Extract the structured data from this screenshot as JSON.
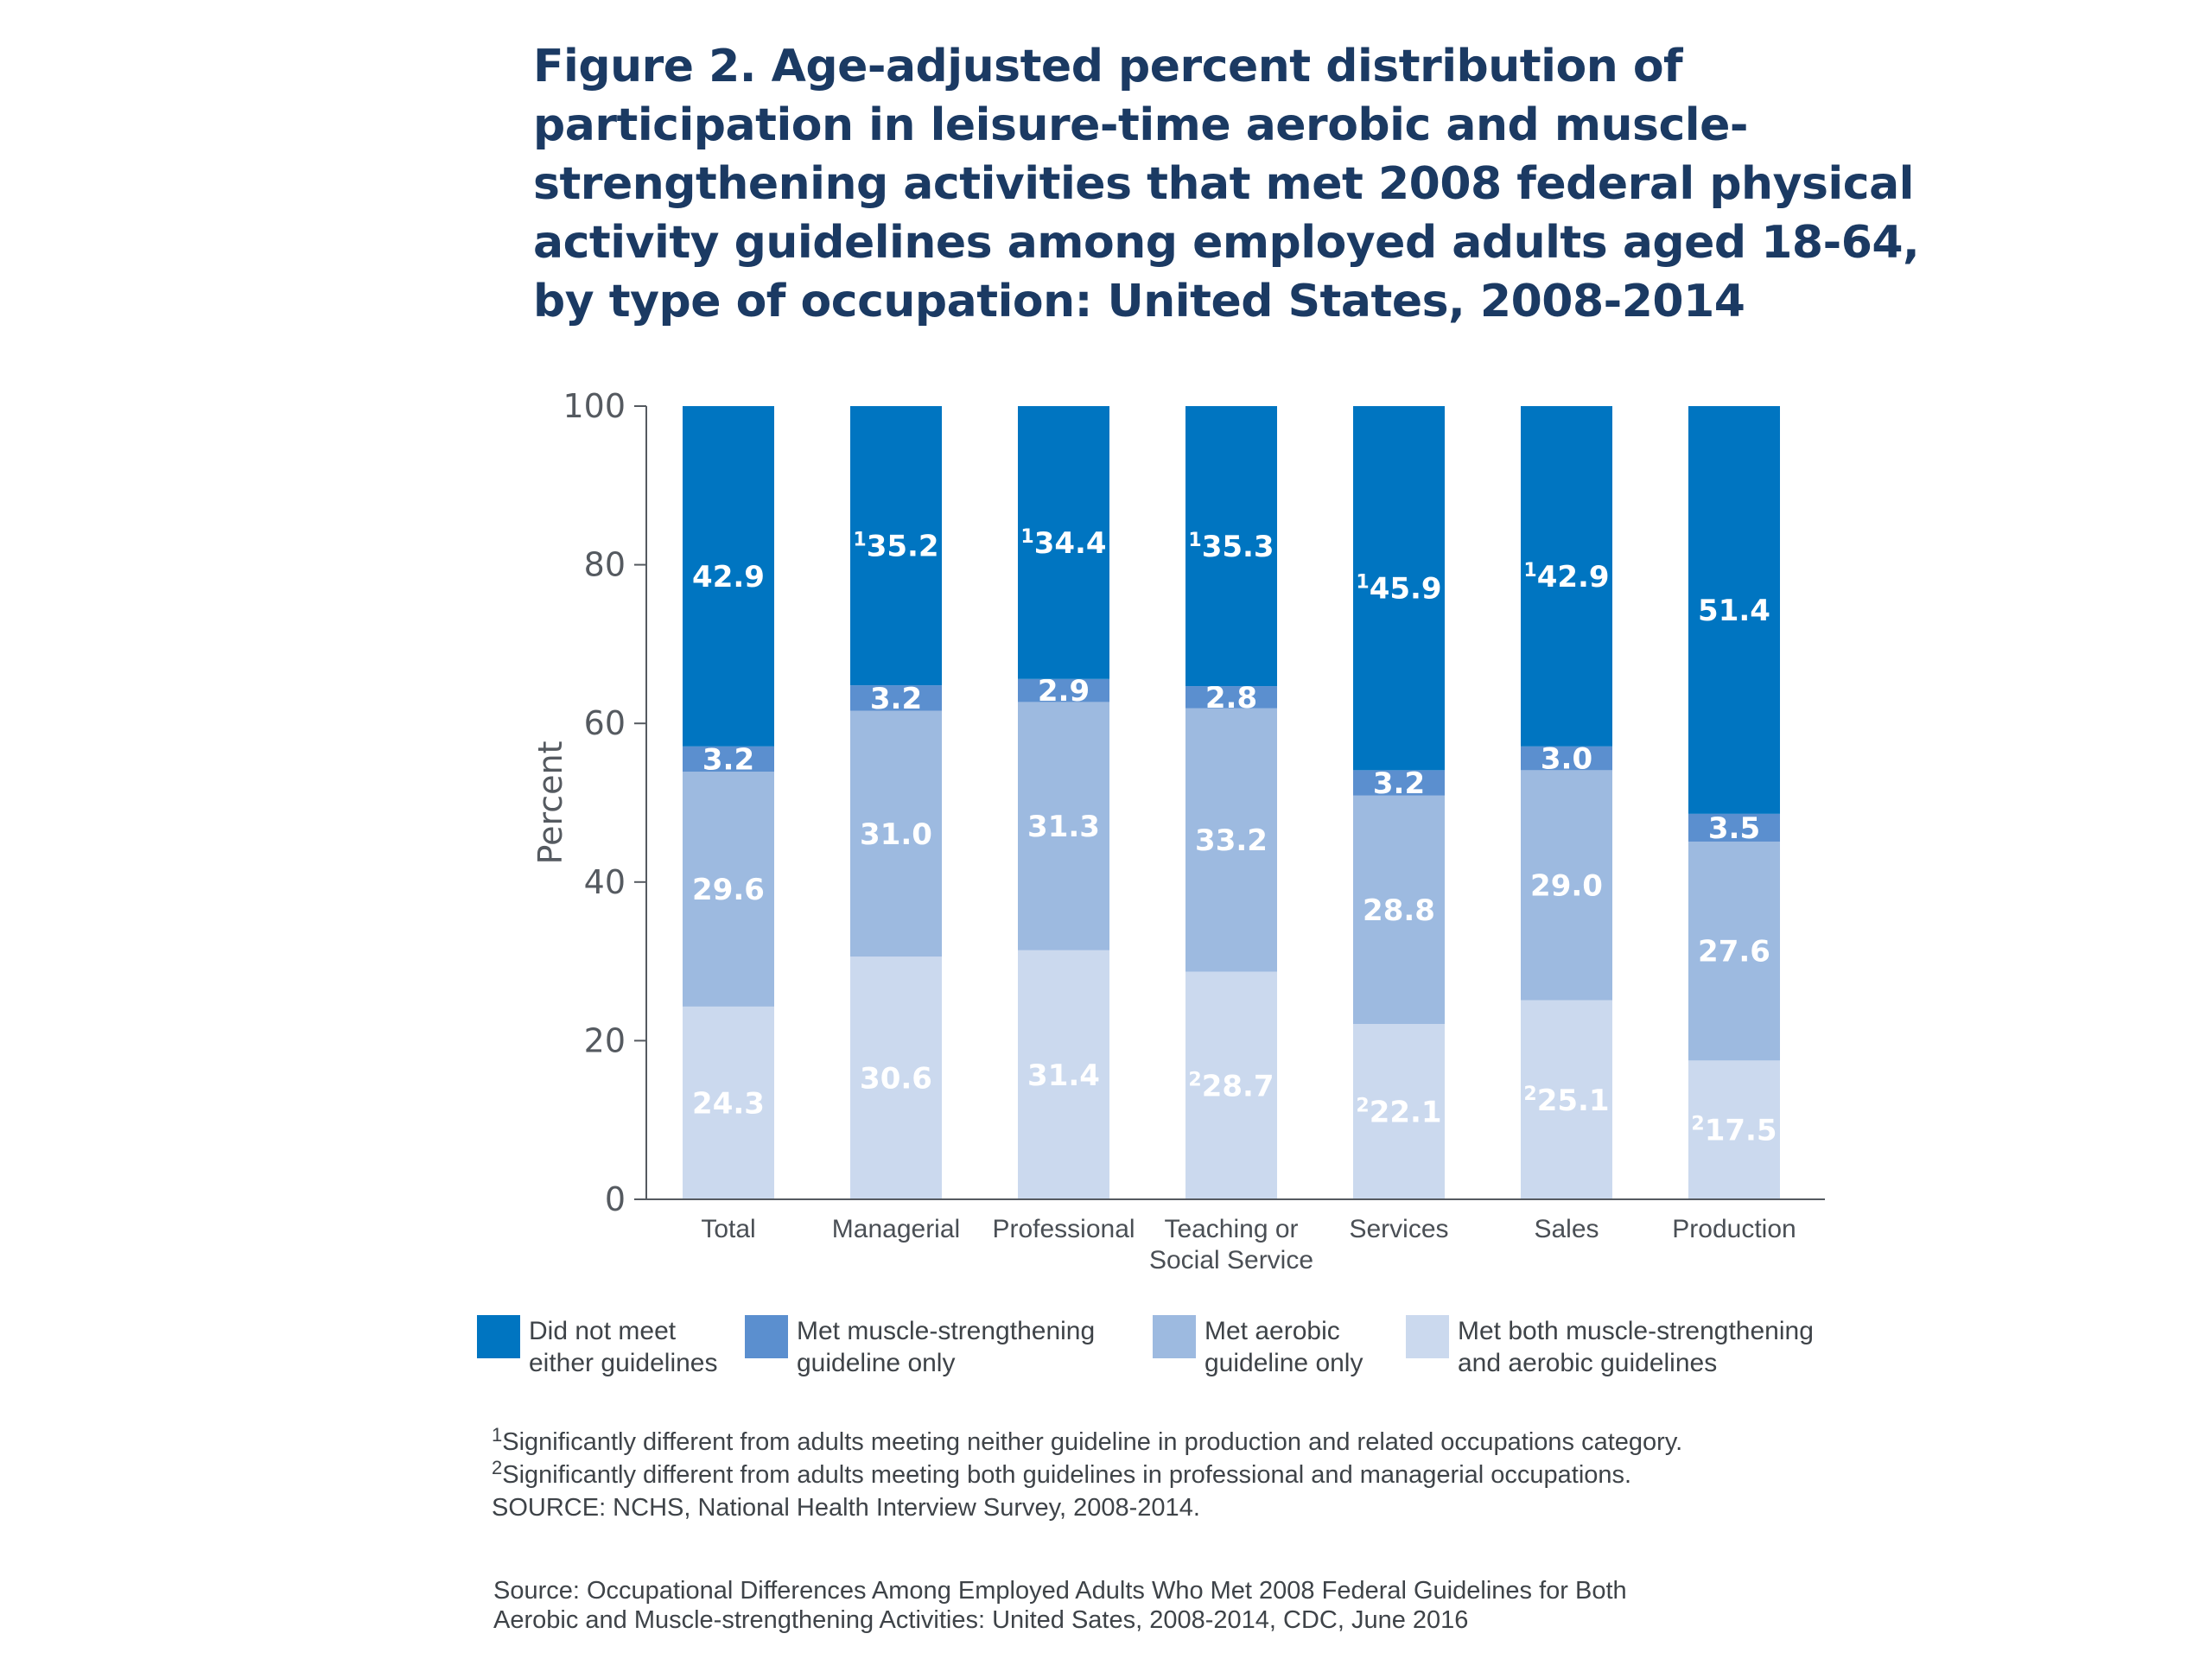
{
  "title_lines": [
    "Figure 2. Age-adjusted percent distribution of",
    "participation in leisure-time aerobic and muscle-",
    "strengthening activities that met 2008 federal physical",
    "activity guidelines among employed adults aged 18-64,",
    "by type of occupation: United States, 2008-2014"
  ],
  "chart_data": {
    "type": "bar",
    "stacked": true,
    "ylabel": "Percent",
    "xlabel": "",
    "ylim": [
      0,
      100
    ],
    "yticks": [
      0,
      20,
      40,
      60,
      80,
      100
    ],
    "categories": [
      "Total",
      "Managerial",
      "Professional",
      "Teaching or\nSocial Service",
      "Services",
      "Sales",
      "Production"
    ],
    "series": [
      {
        "name": "Met both muscle-strengthening and aerobic guidelines",
        "color": "#cbd9ee",
        "label_color": "#ffffff",
        "values": [
          24.3,
          30.6,
          31.4,
          28.7,
          22.1,
          25.1,
          17.5
        ],
        "footnote_marks": [
          "",
          "",
          "",
          "2",
          "2",
          "2",
          "2"
        ]
      },
      {
        "name": "Met aerobic guideline only",
        "color": "#9dbae0",
        "label_color": "#ffffff",
        "values": [
          29.6,
          31.0,
          31.3,
          33.2,
          28.8,
          29.0,
          27.6
        ],
        "footnote_marks": [
          "",
          "",
          "",
          "",
          "",
          "",
          ""
        ]
      },
      {
        "name": "Met muscle-strengthening guideline only",
        "color": "#5b8fcf",
        "label_color": "#ffffff",
        "values": [
          3.2,
          3.2,
          2.9,
          2.8,
          3.2,
          3.0,
          3.5
        ],
        "footnote_marks": [
          "",
          "",
          "",
          "",
          "",
          "",
          ""
        ]
      },
      {
        "name": "Did not meet either guidelines",
        "color": "#0075c1",
        "label_color": "#ffffff",
        "values": [
          42.9,
          35.2,
          34.4,
          35.3,
          45.9,
          42.9,
          51.4
        ],
        "footnote_marks": [
          "",
          "1",
          "1",
          "1",
          "1",
          "1",
          ""
        ]
      }
    ],
    "axis_color": "#555a60"
  },
  "legend": [
    {
      "label": "Did not meet\neither guidelines",
      "color": "#0075c1"
    },
    {
      "label": "Met muscle-strengthening\nguideline only",
      "color": "#5b8fcf"
    },
    {
      "label": "Met aerobic\nguideline only",
      "color": "#9dbae0"
    },
    {
      "label": "Met both muscle-strengthening\nand aerobic guidelines",
      "color": "#cbd9ee"
    }
  ],
  "footnotes": [
    {
      "mark": "1",
      "text": "Significantly different from adults meeting neither guideline in production and related occupations category."
    },
    {
      "mark": "2",
      "text": "Significantly different from adults meeting both guidelines in professional and managerial occupations."
    },
    {
      "mark": "",
      "text": "SOURCE: NCHS, National Health Interview Survey, 2008-2014."
    }
  ],
  "source_lines": [
    "Source: Occupational Differences Among Employed Adults Who Met 2008 Federal Guidelines for Both",
    "Aerobic and Muscle-strengthening Activities: United Sates, 2008-2014, CDC, June 2016"
  ]
}
